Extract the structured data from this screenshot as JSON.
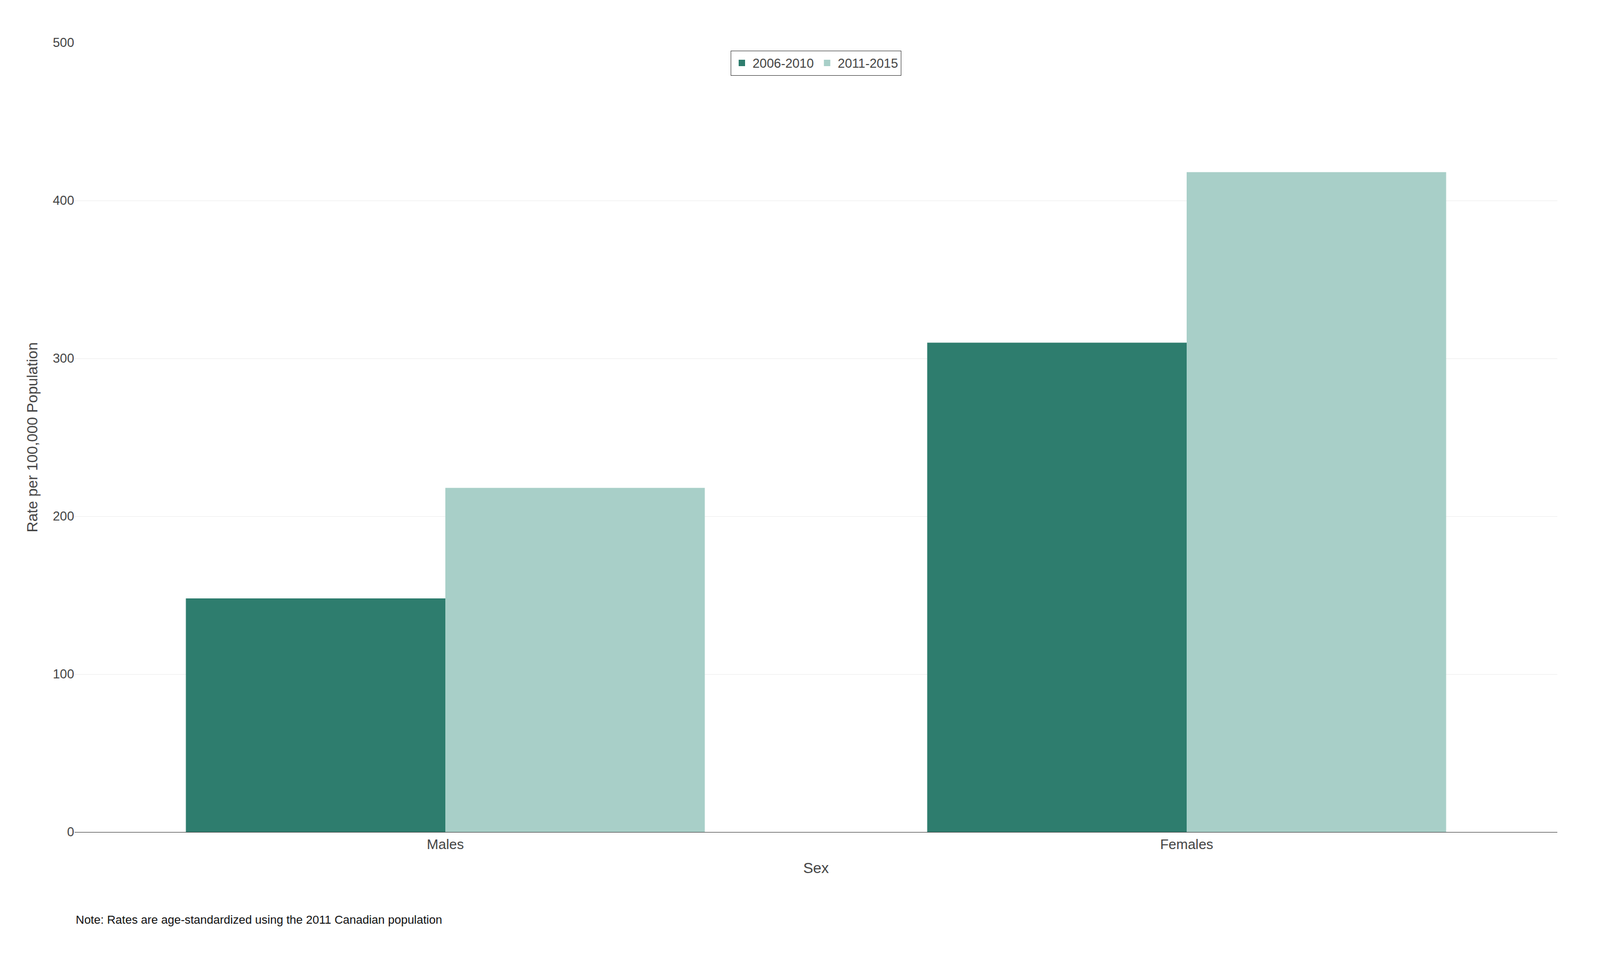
{
  "chart_data": {
    "type": "bar",
    "categories": [
      "Males",
      "Females"
    ],
    "series": [
      {
        "name": "2006-2010",
        "color": "#2e7d6e",
        "values": [
          148,
          310
        ]
      },
      {
        "name": "2011-2015",
        "color": "#a8cfc8",
        "values": [
          218,
          418
        ]
      }
    ],
    "xlabel": "Sex",
    "ylabel": "Rate per 100,000 Population",
    "ylim": [
      0,
      500
    ],
    "yticks": [
      0,
      100,
      200,
      300,
      400,
      500
    ],
    "grid": true,
    "legend": "top",
    "note": "Note: Rates are age-standardized using the 2011 Canadian population"
  }
}
